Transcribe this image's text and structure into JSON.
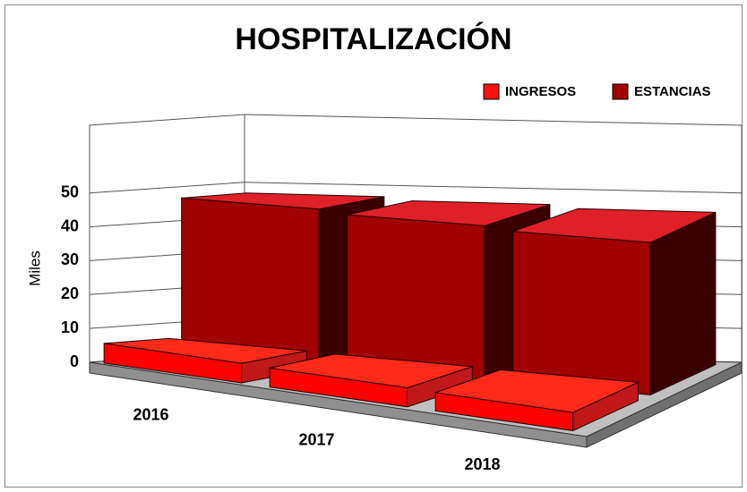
{
  "chart_data": {
    "type": "bar3d",
    "title": "HOSPITALIZACIÓN",
    "y_label": "Miles",
    "categories": [
      "2016",
      "2017",
      "2018"
    ],
    "series": [
      {
        "name": "INGRESOS",
        "color": "#ff1010",
        "values": [
          5.8,
          5.6,
          5.4
        ]
      },
      {
        "name": "ESTANCIAS",
        "color": "#a00000",
        "values": [
          47,
          46,
          45
        ]
      }
    ],
    "ylim": [
      0,
      70
    ],
    "yticks": [
      0,
      10,
      20,
      30,
      40,
      50
    ],
    "grid": true,
    "legend": "top-right"
  }
}
